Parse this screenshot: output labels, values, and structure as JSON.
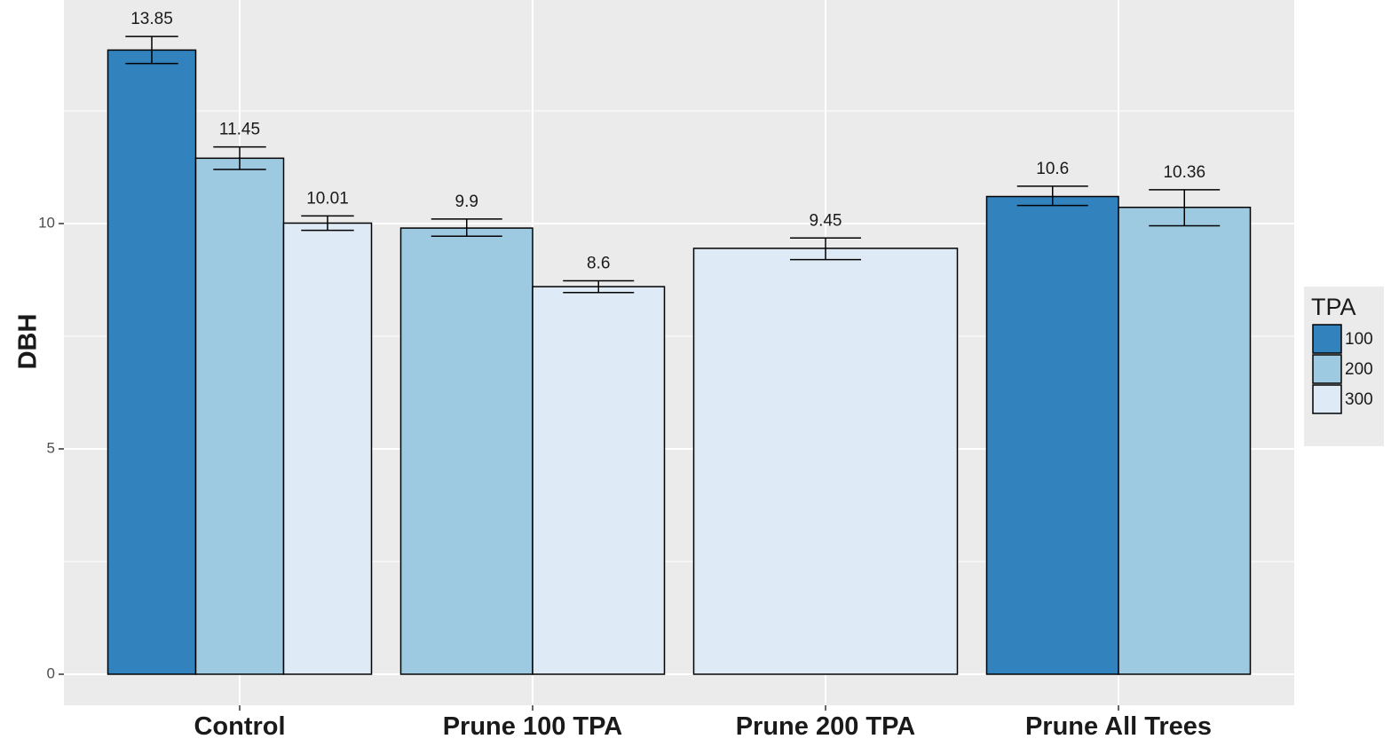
{
  "chart_data": {
    "type": "bar",
    "title": "",
    "xlabel": "",
    "ylabel": "DBH",
    "ylim": [
      -0.7,
      14.8
    ],
    "yticks": [
      0,
      5,
      10
    ],
    "categories": [
      "Control",
      "Prune 100 TPA",
      "Prune 200 TPA",
      "Prune All Trees"
    ],
    "grid": true,
    "legend": {
      "title": "TPA",
      "placement": "right"
    },
    "series": [
      {
        "name": "100",
        "color": "#3182bd"
      },
      {
        "name": "200",
        "color": "#9ecae1"
      },
      {
        "name": "300",
        "color": "#deebf7"
      }
    ],
    "bars": [
      {
        "category": "Control",
        "series": "100",
        "value": 13.85,
        "label": "13.85",
        "err_low": 13.55,
        "err_high": 14.15
      },
      {
        "category": "Control",
        "series": "200",
        "value": 11.45,
        "label": "11.45",
        "err_low": 11.2,
        "err_high": 11.7
      },
      {
        "category": "Control",
        "series": "300",
        "value": 10.01,
        "label": "10.01",
        "err_low": 9.85,
        "err_high": 10.17
      },
      {
        "category": "Prune 100 TPA",
        "series": "200",
        "value": 9.9,
        "label": "9.9",
        "err_low": 9.72,
        "err_high": 10.1
      },
      {
        "category": "Prune 100 TPA",
        "series": "300",
        "value": 8.6,
        "label": "8.6",
        "err_low": 8.47,
        "err_high": 8.73
      },
      {
        "category": "Prune 200 TPA",
        "series": "300",
        "value": 9.45,
        "label": "9.45",
        "err_low": 9.2,
        "err_high": 9.68
      },
      {
        "category": "Prune All Trees",
        "series": "100",
        "value": 10.6,
        "label": "10.6",
        "err_low": 10.4,
        "err_high": 10.83
      },
      {
        "category": "Prune All Trees",
        "series": "200",
        "value": 10.36,
        "label": "10.36",
        "err_low": 9.95,
        "err_high": 10.75
      }
    ]
  }
}
